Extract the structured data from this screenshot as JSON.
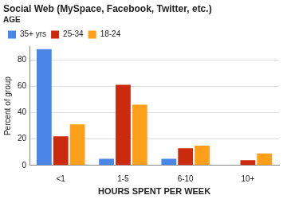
{
  "chart_data": {
    "type": "bar",
    "title": "Social Web (MySpace, Facebook, Twitter, etc.)",
    "legend_title": "AGE",
    "x_label": "HOURS SPENT PER WEEK",
    "y_label": "Percent of group",
    "categories": [
      "<1",
      "1-5",
      "6-10",
      "10+"
    ],
    "series": [
      {
        "name": "35+ yrs",
        "color": "#4a86e8",
        "values": [
          88,
          5,
          5,
          0
        ]
      },
      {
        "name": "25-34",
        "color": "#cc2a0c",
        "values": [
          22,
          61,
          13,
          4
        ]
      },
      {
        "name": "18-24",
        "color": "#ff9f1a",
        "values": [
          31,
          46,
          15,
          9
        ]
      }
    ],
    "ylim": [
      0,
      90
    ],
    "yticks": [
      0,
      20,
      40,
      60,
      80
    ],
    "grid": true,
    "legend": "top"
  }
}
